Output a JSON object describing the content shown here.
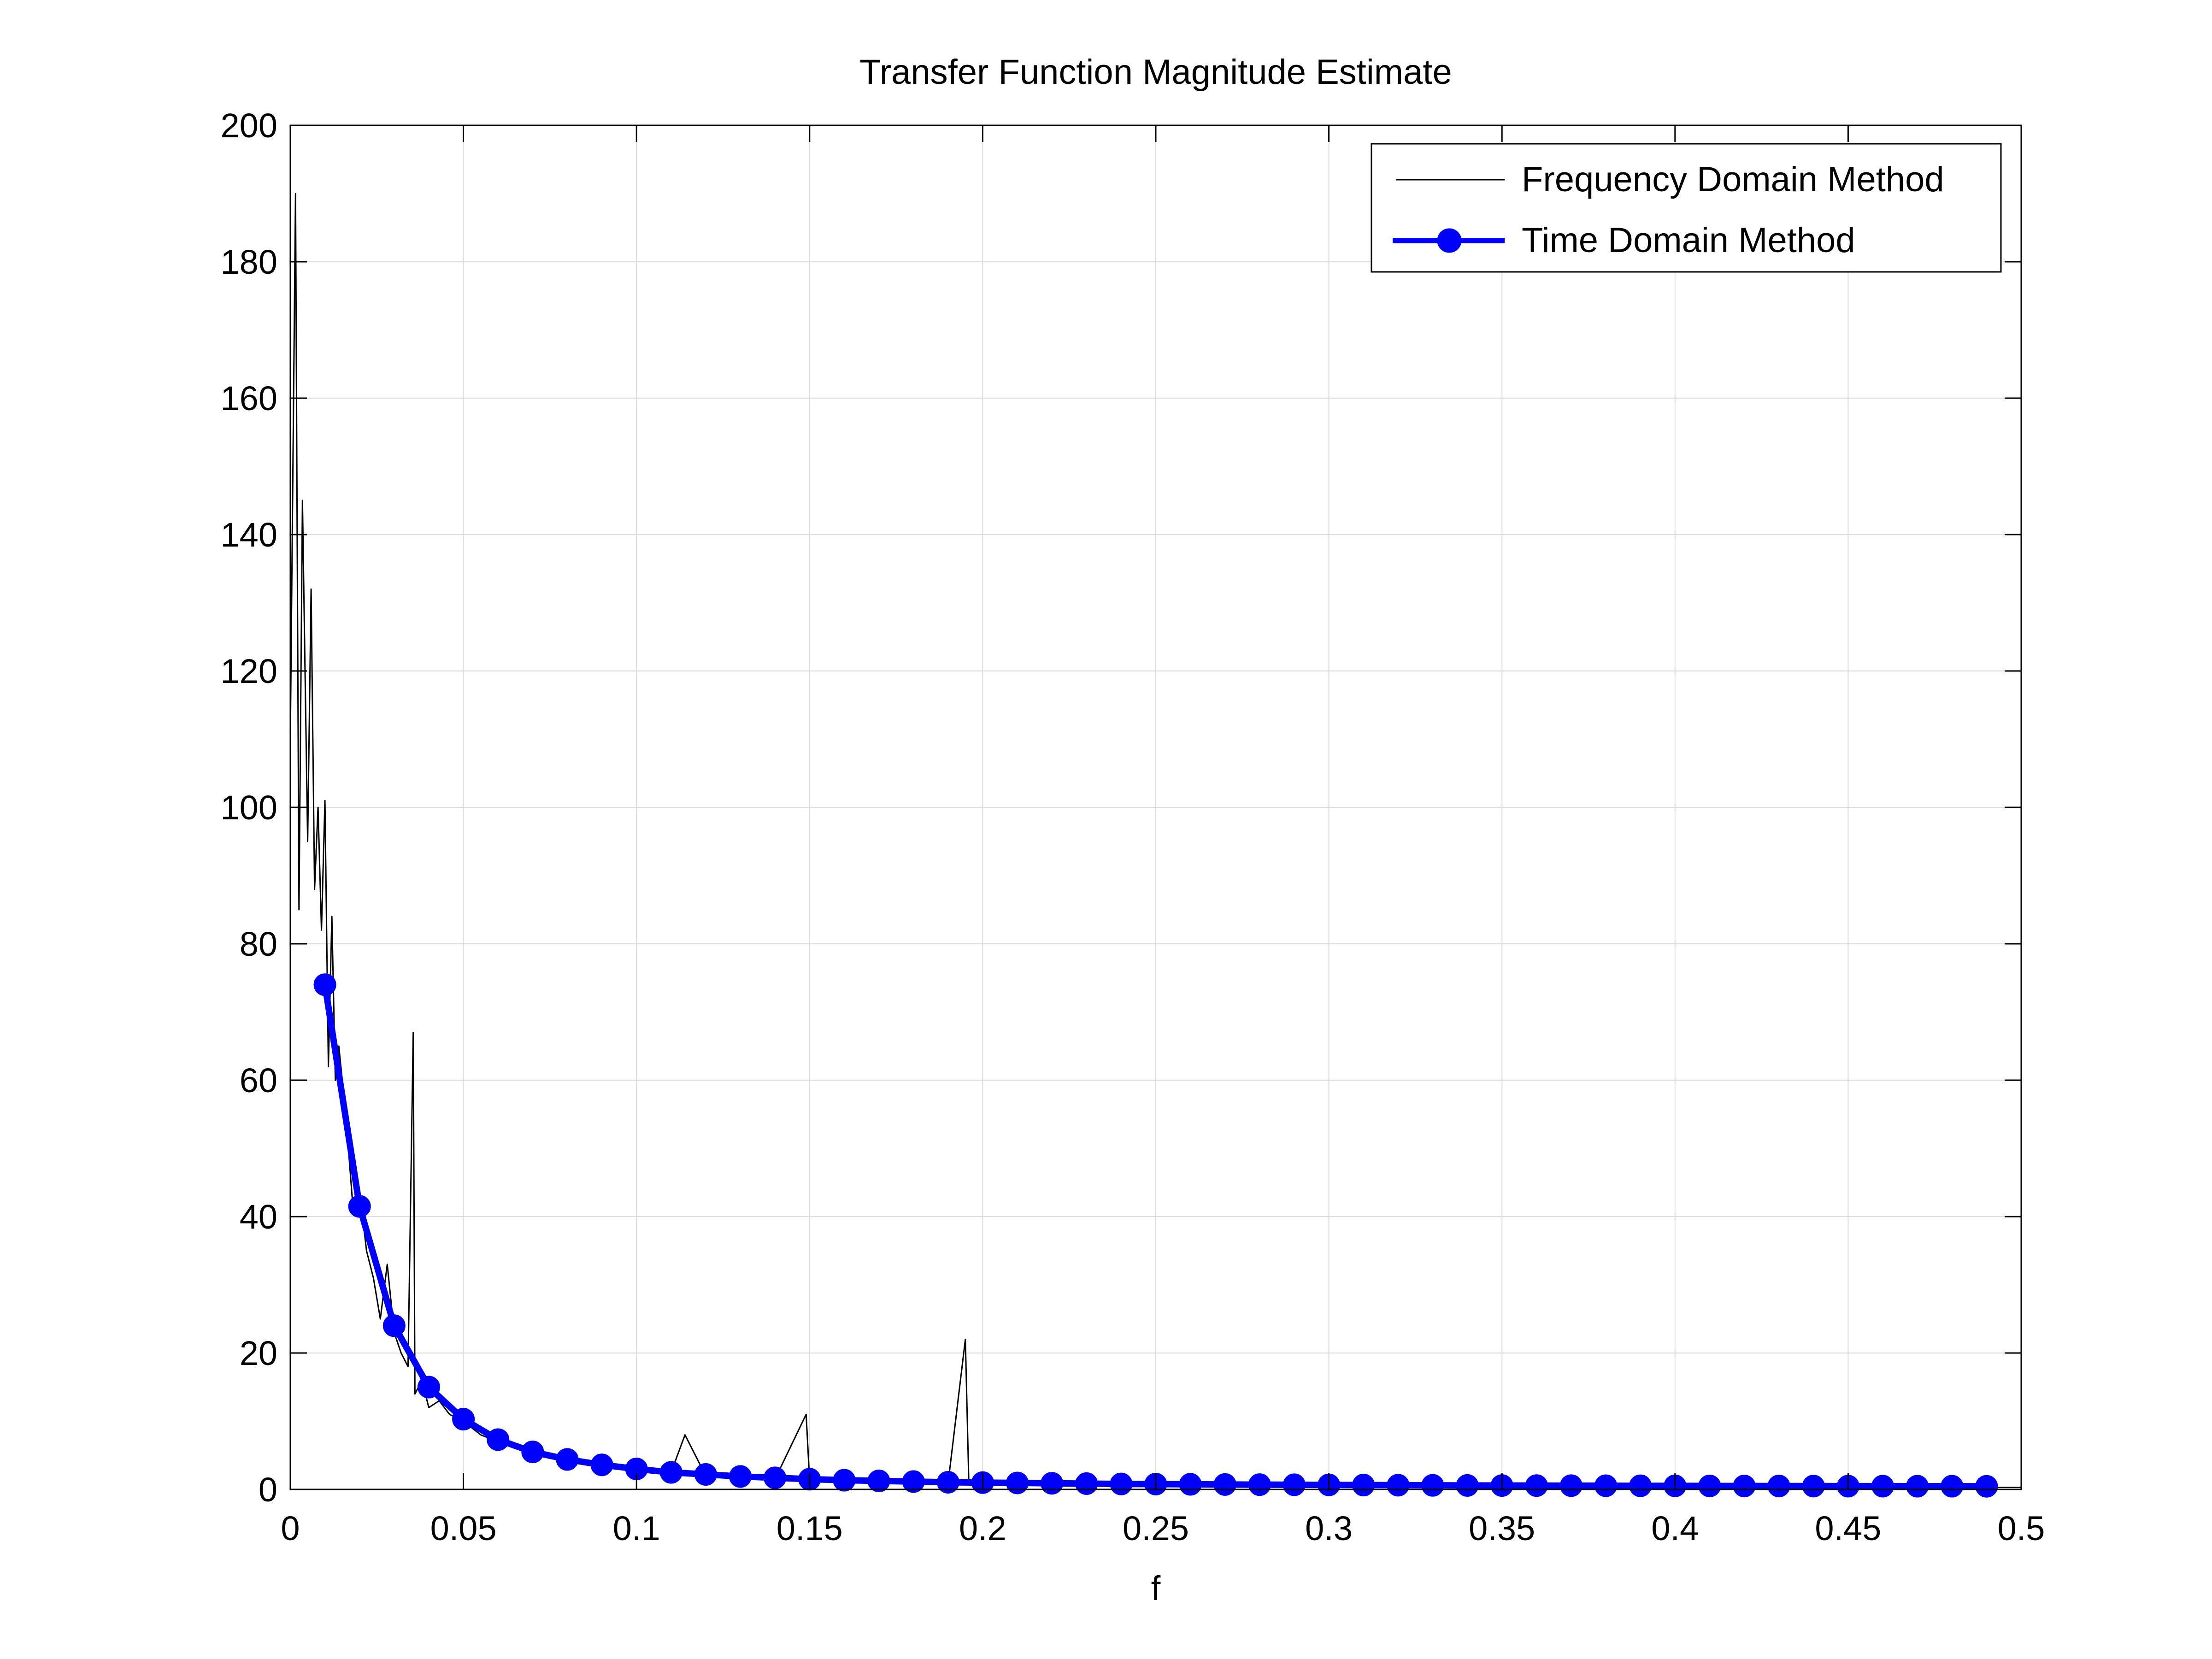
{
  "chart_data": {
    "type": "line",
    "title": "Transfer Function Magnitude Estimate",
    "xlabel": "f",
    "ylabel": "",
    "xlim": [
      0,
      0.5
    ],
    "ylim": [
      0,
      200
    ],
    "xticks": [
      0,
      0.05,
      0.1,
      0.15,
      0.2,
      0.25,
      0.3,
      0.35,
      0.4,
      0.45,
      0.5
    ],
    "xtick_labels": [
      "0",
      "0.05",
      "0.1",
      "0.15",
      "0.2",
      "0.25",
      "0.3",
      "0.35",
      "0.4",
      "0.45",
      "0.5"
    ],
    "yticks": [
      0,
      20,
      40,
      60,
      80,
      100,
      120,
      140,
      160,
      180,
      200
    ],
    "ytick_labels": [
      "0",
      "20",
      "40",
      "60",
      "80",
      "100",
      "120",
      "140",
      "160",
      "180",
      "200"
    ],
    "grid": true,
    "legend_position": "top-right",
    "series": [
      {
        "name": "Frequency Domain Method",
        "color": "#000000",
        "style": "thin-line",
        "x": [
          0,
          0.0015,
          0.0025,
          0.0035,
          0.005,
          0.006,
          0.007,
          0.008,
          0.009,
          0.01,
          0.011,
          0.012,
          0.013,
          0.014,
          0.016,
          0.018,
          0.02,
          0.022,
          0.024,
          0.026,
          0.028,
          0.03,
          0.032,
          0.034,
          0.0355,
          0.036,
          0.038,
          0.04,
          0.043,
          0.046,
          0.05,
          0.055,
          0.06,
          0.07,
          0.08,
          0.09,
          0.1,
          0.11,
          0.114,
          0.12,
          0.13,
          0.14,
          0.149,
          0.15,
          0.16,
          0.17,
          0.18,
          0.19,
          0.195,
          0.196,
          0.2,
          0.25,
          0.3,
          0.35,
          0.4,
          0.45,
          0.5
        ],
        "y": [
          110,
          190,
          85,
          145,
          95,
          132,
          88,
          100,
          82,
          101,
          62,
          84,
          60,
          65,
          55,
          42,
          44,
          35,
          31,
          25,
          33,
          23,
          20,
          18,
          67,
          14,
          16,
          12,
          13,
          11,
          10,
          8,
          7,
          5.5,
          4.5,
          3.5,
          3,
          2.5,
          8,
          2,
          1.8,
          1.5,
          11,
          1.3,
          1.2,
          1.1,
          1,
          0.9,
          22,
          0.8,
          0.8,
          0.6,
          0.5,
          0.4,
          0.4,
          0.3,
          0.3
        ]
      },
      {
        "name": "Time Domain Method",
        "color": "#0000ff",
        "style": "thick-line-with-circle-markers",
        "x": [
          0.01,
          0.02,
          0.03,
          0.04,
          0.05,
          0.06,
          0.07,
          0.08,
          0.09,
          0.1,
          0.11,
          0.12,
          0.13,
          0.14,
          0.15,
          0.16,
          0.17,
          0.18,
          0.19,
          0.2,
          0.21,
          0.22,
          0.23,
          0.24,
          0.25,
          0.26,
          0.27,
          0.28,
          0.29,
          0.3,
          0.31,
          0.32,
          0.33,
          0.34,
          0.35,
          0.36,
          0.37,
          0.38,
          0.39,
          0.4,
          0.41,
          0.42,
          0.43,
          0.44,
          0.45,
          0.46,
          0.47,
          0.48,
          0.49
        ],
        "y": [
          74,
          41.5,
          24,
          15,
          10.3,
          7.3,
          5.5,
          4.4,
          3.6,
          3.0,
          2.5,
          2.2,
          1.9,
          1.7,
          1.5,
          1.35,
          1.25,
          1.15,
          1.05,
          1.0,
          0.95,
          0.9,
          0.85,
          0.8,
          0.78,
          0.75,
          0.72,
          0.7,
          0.68,
          0.66,
          0.64,
          0.62,
          0.6,
          0.58,
          0.57,
          0.56,
          0.55,
          0.54,
          0.53,
          0.52,
          0.51,
          0.5,
          0.5,
          0.49,
          0.48,
          0.48,
          0.47,
          0.47,
          0.46
        ]
      }
    ]
  }
}
